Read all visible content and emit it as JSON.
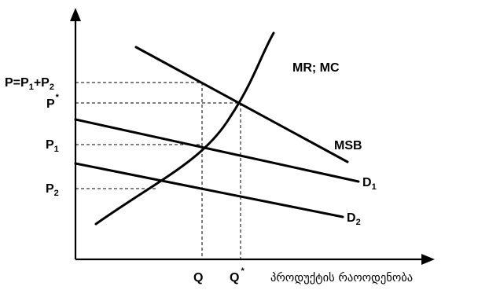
{
  "diagram": {
    "labels": {
      "p_sum_main": "P=P",
      "p_sum_sub1": "1",
      "p_sum_plus": "+P",
      "p_sum_sub2": "2",
      "p_star": "P",
      "p_star_sup": "*",
      "p1": "P",
      "p1_sub": "1",
      "p2": "P",
      "p2_sub": "2",
      "q": "Q",
      "q_star": "Q",
      "q_star_sup": "*",
      "x_axis_title": "პროდუქტის რაოოდენობა",
      "mr_mc": "MR; MC",
      "msb": "MSB",
      "d1": "D",
      "d1_sub": "1",
      "d2": "D",
      "d2_sub": "2"
    },
    "colors": {
      "ink": "#000000",
      "background": "#ffffff"
    }
  }
}
